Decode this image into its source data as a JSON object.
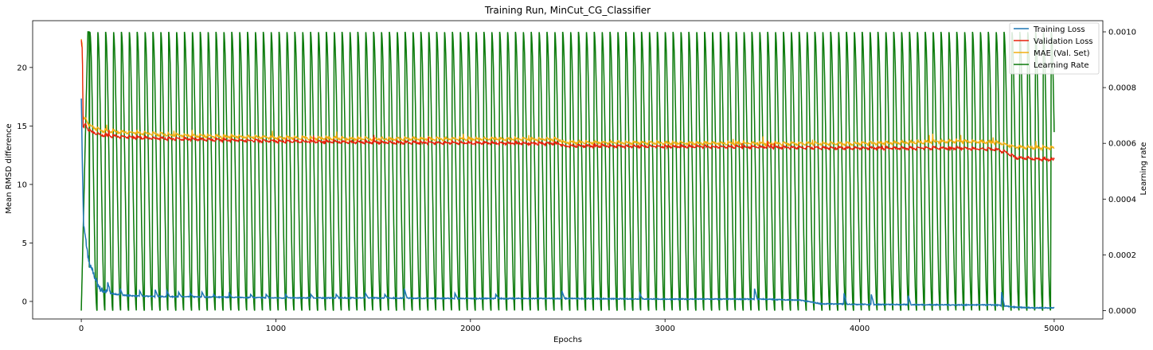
{
  "chart_data": {
    "type": "line",
    "title": "Training Run, MinCut_CG_Classifier",
    "xlabel": "Epochs",
    "ylabel": "Mean RMSD difference",
    "y2label": "Learning rate",
    "xlim": [
      -250,
      5250
    ],
    "ylim": [
      -1.5,
      24
    ],
    "y2lim": [
      -3e-05,
      0.00104
    ],
    "xticks": [
      0,
      1000,
      2000,
      3000,
      4000,
      5000
    ],
    "yticks": [
      0,
      5,
      10,
      15,
      20
    ],
    "y2ticks": [
      0.0,
      0.0002,
      0.0004,
      0.0006,
      0.0008,
      0.001
    ],
    "y2tick_labels": [
      "0.0000",
      "0.0002",
      "0.0004",
      "0.0006",
      "0.0008",
      "0.0010"
    ],
    "legend_position": "top-right",
    "series": [
      {
        "name": "Training Loss",
        "color": "#1f77b4",
        "axis": "left",
        "x": [
          0,
          5,
          12,
          25,
          40,
          60,
          80,
          100,
          150,
          200,
          300,
          500,
          800,
          1000,
          1500,
          2000,
          2500,
          3000,
          3500,
          3700,
          3800,
          4000,
          4500,
          4700,
          4750,
          4800,
          4900,
          5000
        ],
        "values": [
          17.6,
          12.0,
          6.5,
          5.0,
          3.2,
          2.5,
          1.6,
          1.0,
          0.7,
          0.55,
          0.45,
          0.4,
          0.35,
          0.3,
          0.3,
          0.25,
          0.25,
          0.2,
          0.2,
          0.1,
          -0.2,
          -0.25,
          -0.3,
          -0.3,
          -0.4,
          -0.5,
          -0.55,
          -0.55
        ],
        "spikes": [
          [
            135,
            1.7
          ],
          [
            200,
            1.1
          ],
          [
            300,
            0.9
          ],
          [
            380,
            1.0
          ],
          [
            440,
            0.9
          ],
          [
            500,
            0.8
          ],
          [
            560,
            0.7
          ],
          [
            620,
            0.8
          ],
          [
            680,
            0.6
          ],
          [
            760,
            0.7
          ],
          [
            870,
            0.6
          ],
          [
            950,
            0.6
          ],
          [
            1050,
            0.6
          ],
          [
            1180,
            0.6
          ],
          [
            1310,
            0.6
          ],
          [
            1460,
            0.7
          ],
          [
            1560,
            0.6
          ],
          [
            1660,
            1.1
          ],
          [
            1920,
            0.7
          ],
          [
            2130,
            0.6
          ],
          [
            2470,
            0.9
          ],
          [
            2870,
            0.7
          ],
          [
            3460,
            1.1
          ],
          [
            3920,
            0.7
          ],
          [
            4060,
            0.6
          ],
          [
            4250,
            0.5
          ],
          [
            4730,
            0.8
          ]
        ]
      },
      {
        "name": "Validation Loss",
        "color": "#e8210c",
        "axis": "left",
        "x": [
          0,
          5,
          10,
          20,
          40,
          100,
          300,
          500,
          1000,
          1500,
          2000,
          2460,
          2480,
          3000,
          3500,
          4000,
          4500,
          4700,
          4750,
          4800,
          5000
        ],
        "values": [
          22.2,
          21.5,
          14.8,
          15.2,
          14.6,
          14.2,
          14.0,
          13.9,
          13.7,
          13.6,
          13.55,
          13.5,
          13.3,
          13.25,
          13.2,
          13.1,
          13.1,
          13.0,
          12.8,
          12.3,
          12.1
        ]
      },
      {
        "name": "MAE (Val. Set)",
        "color": "#f2ad12",
        "axis": "left",
        "x": [
          0,
          5,
          10,
          20,
          40,
          100,
          300,
          500,
          1000,
          1500,
          2000,
          2460,
          2480,
          3000,
          3500,
          4000,
          4500,
          4700,
          4750,
          4800,
          5000
        ],
        "values": [
          22.4,
          21.8,
          15.6,
          15.8,
          15.1,
          14.6,
          14.4,
          14.2,
          14.0,
          13.9,
          13.9,
          13.85,
          13.6,
          13.55,
          13.5,
          13.5,
          13.7,
          13.6,
          13.4,
          13.2,
          13.1
        ]
      },
      {
        "name": "Learning Rate",
        "color": "#0b7a0b",
        "axis": "right",
        "schedule": "cosine annealing with warm restarts",
        "min": 0.0,
        "max": 0.001,
        "cycle_length": 40.5,
        "epochs": 5000
      }
    ]
  }
}
